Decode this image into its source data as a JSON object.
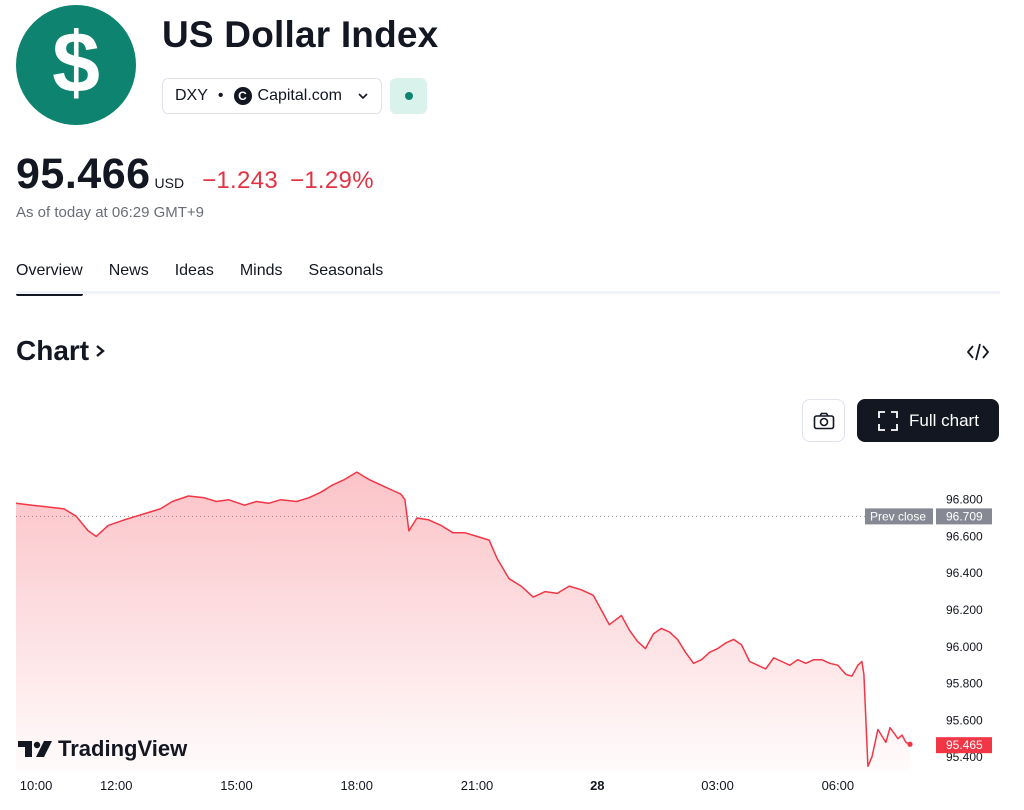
{
  "header": {
    "logo_symbol": "$",
    "title": "US Dollar Index",
    "ticker": "DXY",
    "separator": "•",
    "exchange_logo_letter": "C",
    "exchange": "Capital.com",
    "status_color": "#0e8470"
  },
  "quote": {
    "price": "95.466",
    "currency": "USD",
    "change": "−1.243",
    "change_pct": "−1.29%",
    "as_of": "As of today at 06:29 GMT+9"
  },
  "tabs": [
    {
      "label": "Overview",
      "active": true
    },
    {
      "label": "News",
      "active": false
    },
    {
      "label": "Ideas",
      "active": false
    },
    {
      "label": "Minds",
      "active": false
    },
    {
      "label": "Seasonals",
      "active": false
    }
  ],
  "chart_section": {
    "heading": "Chart",
    "embed_icon": "code-icon",
    "camera_icon": "camera-icon",
    "full_chart_label": "Full chart",
    "brand": "TradingView"
  },
  "chart_data": {
    "type": "area",
    "color": "#f23645",
    "y_ticks": [
      "96.800",
      "96.600",
      "96.400",
      "96.200",
      "96.000",
      "95.800",
      "95.600",
      "95.400"
    ],
    "ylim": [
      95.33,
      97.07
    ],
    "x_ticks": [
      {
        "label": "10:00",
        "t": 0.5
      },
      {
        "label": "12:00",
        "t": 2.5
      },
      {
        "label": "15:00",
        "t": 5.5
      },
      {
        "label": "18:00",
        "t": 8.5
      },
      {
        "label": "21:00",
        "t": 11.5
      },
      {
        "label": "28",
        "t": 14.5,
        "bold": true
      },
      {
        "label": "03:00",
        "t": 17.5
      },
      {
        "label": "06:00",
        "t": 20.5
      }
    ],
    "prev_close": {
      "label": "Prev close",
      "value": 96.709,
      "text": "96.709"
    },
    "last": {
      "value": 95.465,
      "text": "95.465"
    },
    "series": [
      {
        "values": [
          [
            0.0,
            96.78
          ],
          [
            0.4,
            96.77
          ],
          [
            0.8,
            96.76
          ],
          [
            1.2,
            96.75
          ],
          [
            1.5,
            96.71
          ],
          [
            1.8,
            96.63
          ],
          [
            2.0,
            96.6
          ],
          [
            2.3,
            96.66
          ],
          [
            2.7,
            96.69
          ],
          [
            3.0,
            96.71
          ],
          [
            3.3,
            96.73
          ],
          [
            3.6,
            96.75
          ],
          [
            3.9,
            96.79
          ],
          [
            4.3,
            96.82
          ],
          [
            4.7,
            96.81
          ],
          [
            5.0,
            96.79
          ],
          [
            5.3,
            96.8
          ],
          [
            5.7,
            96.77
          ],
          [
            6.0,
            96.79
          ],
          [
            6.3,
            96.78
          ],
          [
            6.6,
            96.8
          ],
          [
            7.0,
            96.79
          ],
          [
            7.3,
            96.81
          ],
          [
            7.6,
            96.84
          ],
          [
            7.9,
            96.88
          ],
          [
            8.2,
            96.91
          ],
          [
            8.5,
            96.95
          ],
          [
            8.8,
            96.91
          ],
          [
            9.1,
            96.88
          ],
          [
            9.4,
            96.85
          ],
          [
            9.6,
            96.83
          ],
          [
            9.7,
            96.8
          ],
          [
            9.8,
            96.63
          ],
          [
            10.0,
            96.7
          ],
          [
            10.3,
            96.69
          ],
          [
            10.6,
            96.66
          ],
          [
            10.9,
            96.62
          ],
          [
            11.2,
            96.62
          ],
          [
            11.5,
            96.6
          ],
          [
            11.8,
            96.58
          ],
          [
            12.0,
            96.48
          ],
          [
            12.3,
            96.37
          ],
          [
            12.6,
            96.33
          ],
          [
            12.9,
            96.27
          ],
          [
            13.2,
            96.3
          ],
          [
            13.5,
            96.29
          ],
          [
            13.8,
            96.33
          ],
          [
            14.1,
            96.31
          ],
          [
            14.4,
            96.28
          ],
          [
            14.6,
            96.2
          ],
          [
            14.8,
            96.12
          ],
          [
            15.1,
            96.17
          ],
          [
            15.3,
            96.09
          ],
          [
            15.5,
            96.03
          ],
          [
            15.7,
            95.99
          ],
          [
            15.9,
            96.07
          ],
          [
            16.1,
            96.1
          ],
          [
            16.3,
            96.08
          ],
          [
            16.5,
            96.04
          ],
          [
            16.7,
            95.97
          ],
          [
            16.9,
            95.91
          ],
          [
            17.1,
            95.93
          ],
          [
            17.3,
            95.97
          ],
          [
            17.5,
            95.99
          ],
          [
            17.7,
            96.02
          ],
          [
            17.9,
            96.04
          ],
          [
            18.1,
            96.01
          ],
          [
            18.3,
            95.92
          ],
          [
            18.5,
            95.9
          ],
          [
            18.7,
            95.88
          ],
          [
            18.9,
            95.94
          ],
          [
            19.1,
            95.92
          ],
          [
            19.3,
            95.9
          ],
          [
            19.5,
            95.93
          ],
          [
            19.7,
            95.91
          ],
          [
            19.9,
            95.93
          ],
          [
            20.1,
            95.93
          ],
          [
            20.3,
            95.91
          ],
          [
            20.5,
            95.9
          ],
          [
            20.7,
            95.85
          ],
          [
            20.85,
            95.84
          ],
          [
            21.0,
            95.9
          ],
          [
            21.1,
            95.92
          ],
          [
            21.15,
            95.85
          ],
          [
            21.25,
            95.35
          ],
          [
            21.35,
            95.4
          ],
          [
            21.5,
            95.55
          ],
          [
            21.7,
            95.48
          ],
          [
            21.8,
            95.56
          ],
          [
            22.0,
            95.5
          ],
          [
            22.1,
            95.52
          ],
          [
            22.2,
            95.48
          ],
          [
            22.3,
            95.47
          ]
        ]
      }
    ]
  }
}
